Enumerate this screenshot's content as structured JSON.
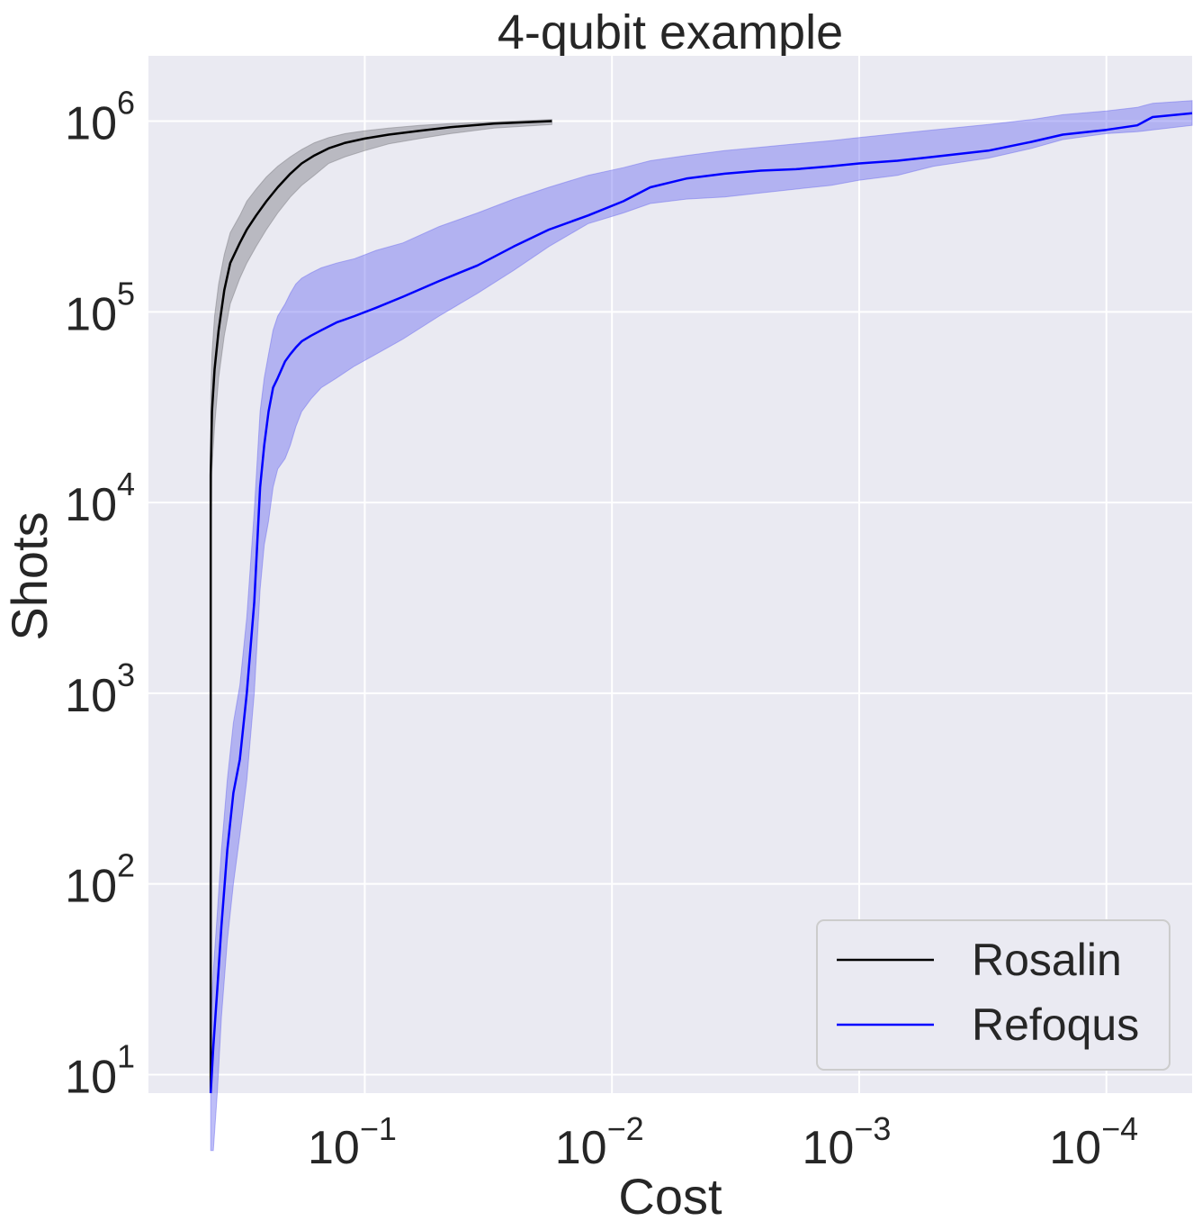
{
  "chart_data": {
    "type": "line",
    "title": "4-qubit example",
    "xlabel": "Cost",
    "ylabel": "Shots",
    "x_scale": "log",
    "x_axis_direction": "reversed",
    "y_scale": "log",
    "xlim": [
      0.75,
      4.5e-05
    ],
    "ylim": [
      8,
      2200000
    ],
    "grid": true,
    "background_color": "#eaeaf2",
    "grid_color": "#ffffff",
    "legend_position": "lower-right",
    "x_ticks": [
      {
        "value": 0.1,
        "base": "10",
        "exponent": "−1"
      },
      {
        "value": 0.01,
        "base": "10",
        "exponent": "−2"
      },
      {
        "value": 0.001,
        "base": "10",
        "exponent": "−3"
      },
      {
        "value": 0.0001,
        "base": "10",
        "exponent": "−4"
      }
    ],
    "y_ticks": [
      {
        "value": 10,
        "base": "10",
        "exponent": "1"
      },
      {
        "value": 100,
        "base": "10",
        "exponent": "2"
      },
      {
        "value": 1000,
        "base": "10",
        "exponent": "3"
      },
      {
        "value": 10000,
        "base": "10",
        "exponent": "4"
      },
      {
        "value": 100000,
        "base": "10",
        "exponent": "5"
      },
      {
        "value": 1000000,
        "base": "10",
        "exponent": "6"
      }
    ],
    "series": [
      {
        "name": "Rosalin",
        "color": "#000000",
        "band_color": "#7f7f85",
        "x": [
          0.42,
          0.42,
          0.42,
          0.42,
          0.415,
          0.405,
          0.39,
          0.37,
          0.35,
          0.32,
          0.3,
          0.275,
          0.25,
          0.225,
          0.2,
          0.18,
          0.16,
          0.14,
          0.12,
          0.1,
          0.08,
          0.06,
          0.045,
          0.03,
          0.0175
        ],
        "y": [
          8,
          50,
          1000,
          14000,
          30000,
          50000,
          80000,
          130000,
          180000,
          230000,
          270000,
          320000,
          380000,
          450000,
          530000,
          600000,
          660000,
          720000,
          770000,
          810000,
          850000,
          890000,
          930000,
          970000,
          1000000
        ],
        "y_lower": [
          8,
          30,
          500,
          4000,
          15000,
          25000,
          45000,
          75000,
          110000,
          150000,
          180000,
          220000,
          270000,
          330000,
          400000,
          460000,
          520000,
          600000,
          650000,
          700000,
          760000,
          810000,
          860000,
          920000,
          960000
        ],
        "y_upper": [
          15,
          100,
          5000,
          35000,
          60000,
          95000,
          140000,
          200000,
          260000,
          320000,
          380000,
          440000,
          510000,
          580000,
          650000,
          710000,
          770000,
          820000,
          860000,
          890000,
          920000,
          950000,
          970000,
          990000,
          1020000
        ]
      },
      {
        "name": "Refoqus",
        "color": "#0000ff",
        "band_color": "#6f6ff0",
        "x": [
          0.42,
          0.41,
          0.395,
          0.38,
          0.36,
          0.34,
          0.32,
          0.3,
          0.28,
          0.265,
          0.255,
          0.245,
          0.235,
          0.225,
          0.21,
          0.2,
          0.19,
          0.18,
          0.165,
          0.15,
          0.13,
          0.11,
          0.09,
          0.07,
          0.05,
          0.035,
          0.025,
          0.018,
          0.0125,
          0.009,
          0.007,
          0.005,
          0.0035,
          0.0025,
          0.0018,
          0.0013,
          0.001,
          0.0007,
          0.0005,
          0.0003,
          0.0002,
          0.00015,
          0.0001,
          7.5e-05,
          6.5e-05,
          4.5e-05
        ],
        "y": [
          8,
          14,
          28,
          60,
          150,
          300,
          450,
          1000,
          3000,
          12000,
          20000,
          30000,
          40000,
          45000,
          55000,
          60000,
          65000,
          70000,
          75000,
          80000,
          88000,
          95000,
          105000,
          120000,
          145000,
          175000,
          220000,
          270000,
          320000,
          380000,
          450000,
          500000,
          530000,
          550000,
          560000,
          580000,
          600000,
          620000,
          650000,
          700000,
          780000,
          850000,
          900000,
          950000,
          1050000,
          1100000
        ],
        "y_lower": [
          4,
          4,
          8,
          20,
          50,
          100,
          180,
          350,
          1000,
          3500,
          6000,
          8000,
          12000,
          15000,
          17000,
          20000,
          25000,
          30000,
          35000,
          40000,
          45000,
          52000,
          60000,
          72000,
          95000,
          125000,
          165000,
          220000,
          290000,
          330000,
          370000,
          390000,
          400000,
          420000,
          440000,
          460000,
          490000,
          520000,
          580000,
          640000,
          720000,
          800000,
          860000,
          880000,
          900000,
          950000
        ],
        "y_upper": [
          18,
          35,
          70,
          150,
          350,
          700,
          1100,
          2500,
          9000,
          30000,
          45000,
          60000,
          80000,
          95000,
          110000,
          125000,
          140000,
          150000,
          160000,
          170000,
          180000,
          190000,
          210000,
          230000,
          280000,
          330000,
          390000,
          450000,
          520000,
          570000,
          620000,
          660000,
          700000,
          730000,
          760000,
          790000,
          820000,
          860000,
          900000,
          960000,
          1020000,
          1080000,
          1130000,
          1180000,
          1240000,
          1280000
        ]
      }
    ]
  }
}
